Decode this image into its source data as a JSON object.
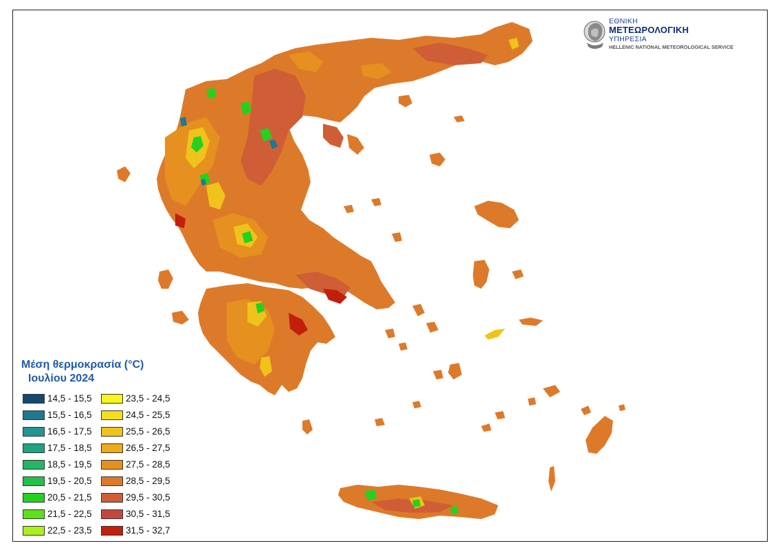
{
  "agency": {
    "line1": "ΕΘΝΙΚΗ",
    "line2": "ΜΕΤΕΩΡΟΛΟΓΙΚΗ",
    "line3": "ΥΠΗΡΕΣΙΑ",
    "line4": "HELLENIC NATIONAL METEOROLOGICAL SERVICE",
    "emblem_icon": "bust-portrait-icon"
  },
  "legend": {
    "title_line1": "Μέση θερμοκρασία (°C)",
    "title_line2": "Ιουλίου 2024",
    "classes": [
      {
        "label": "14,5 - 15,5",
        "color": "#15496f"
      },
      {
        "label": "15,5 - 16,5",
        "color": "#1f7892"
      },
      {
        "label": "16,5 - 17,5",
        "color": "#23968f"
      },
      {
        "label": "17,5 - 18,5",
        "color": "#1da47c"
      },
      {
        "label": "18,5 - 19,5",
        "color": "#27b565"
      },
      {
        "label": "19,5 - 20,5",
        "color": "#21c247"
      },
      {
        "label": "20,5 - 21,5",
        "color": "#22d21f"
      },
      {
        "label": "21,5 - 22,5",
        "color": "#5ee11c"
      },
      {
        "label": "22,5 - 23,5",
        "color": "#abef1e"
      },
      {
        "label": "23,5 - 24,5",
        "color": "#f5f51c"
      },
      {
        "label": "24,5 - 25,5",
        "color": "#f4df1a"
      },
      {
        "label": "25,5 - 26,5",
        "color": "#f0c31a"
      },
      {
        "label": "26,5 - 27,5",
        "color": "#ebab1a"
      },
      {
        "label": "27,5 - 28,5",
        "color": "#e6901f"
      },
      {
        "label": "28,5 - 29,5",
        "color": "#dd7a2a"
      },
      {
        "label": "29,5 - 30,5",
        "color": "#cf5e36"
      },
      {
        "label": "30,5 - 31,5",
        "color": "#c2483c"
      },
      {
        "label": "31,5 - 32,7",
        "color": "#c21f0c"
      }
    ]
  },
  "map_colors": {
    "base": "#dd7a2a",
    "warm": "#cf5e36",
    "hot": "#c21f0c",
    "mild": "#e6901f",
    "cool": "#f0c31a",
    "cold": "#22d21f",
    "coldest": "#1f7892"
  }
}
